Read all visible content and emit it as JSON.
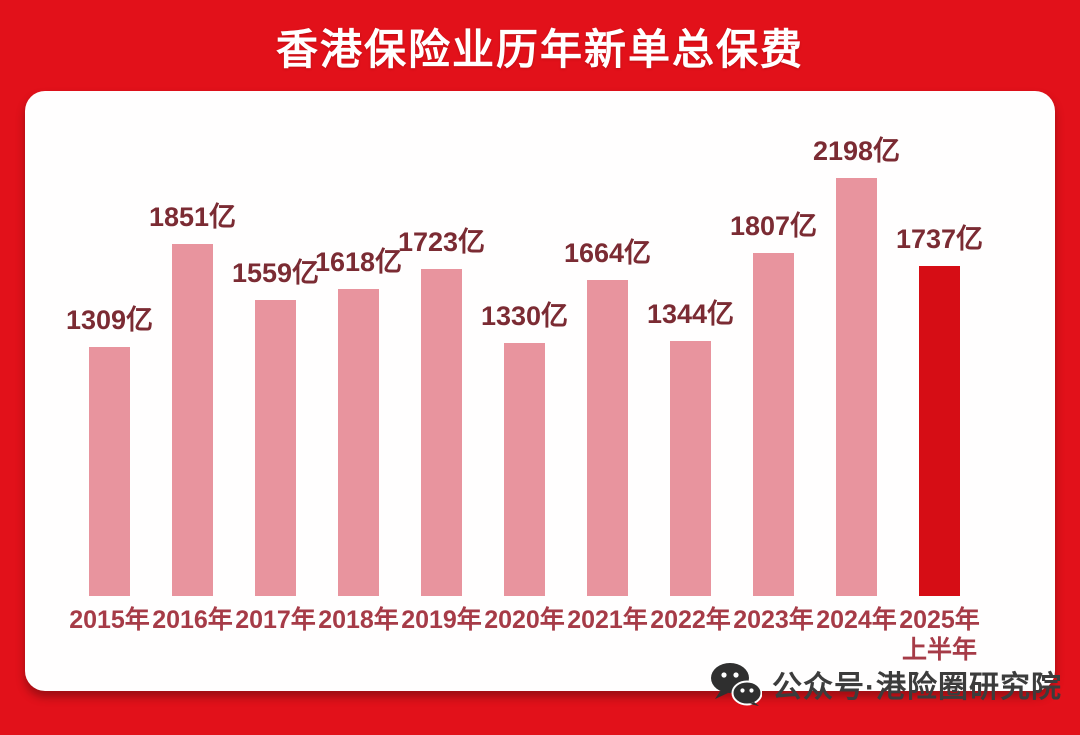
{
  "title": "香港保险业历年新单总保费",
  "chart_data": {
    "type": "bar",
    "title": "香港保险业历年新单总保费",
    "categories": [
      "2015年",
      "2016年",
      "2017年",
      "2018年",
      "2019年",
      "2020年",
      "2021年",
      "2022年",
      "2023年",
      "2024年",
      "2025年\n上半年"
    ],
    "values": [
      1309,
      1851,
      1559,
      1618,
      1723,
      1330,
      1664,
      1344,
      1807,
      2198,
      1737
    ],
    "unit": "亿",
    "value_labels": [
      "1309亿",
      "1851亿",
      "1559亿",
      "1618亿",
      "1723亿",
      "1330亿",
      "1664亿",
      "1344亿",
      "1807亿",
      "2198亿",
      "1737亿"
    ],
    "highlight_index": 10,
    "bar_color": "#E8949E",
    "highlight_color": "#D60D15",
    "value_label_color": "#7B2B33",
    "category_label_color": "#A63B47",
    "xlabel": "",
    "ylabel": "",
    "ylim": [
      0,
      2300
    ],
    "grid": false,
    "legend": false,
    "legend_position": null
  },
  "watermark": {
    "icon": "wechat-icon",
    "text": "公众号·港险圈研究院"
  },
  "colors": {
    "background": "#E2111A",
    "card": "#FFFEFE",
    "title_text": "#FFFFFF",
    "watermark_text": "#3C3C3C"
  }
}
